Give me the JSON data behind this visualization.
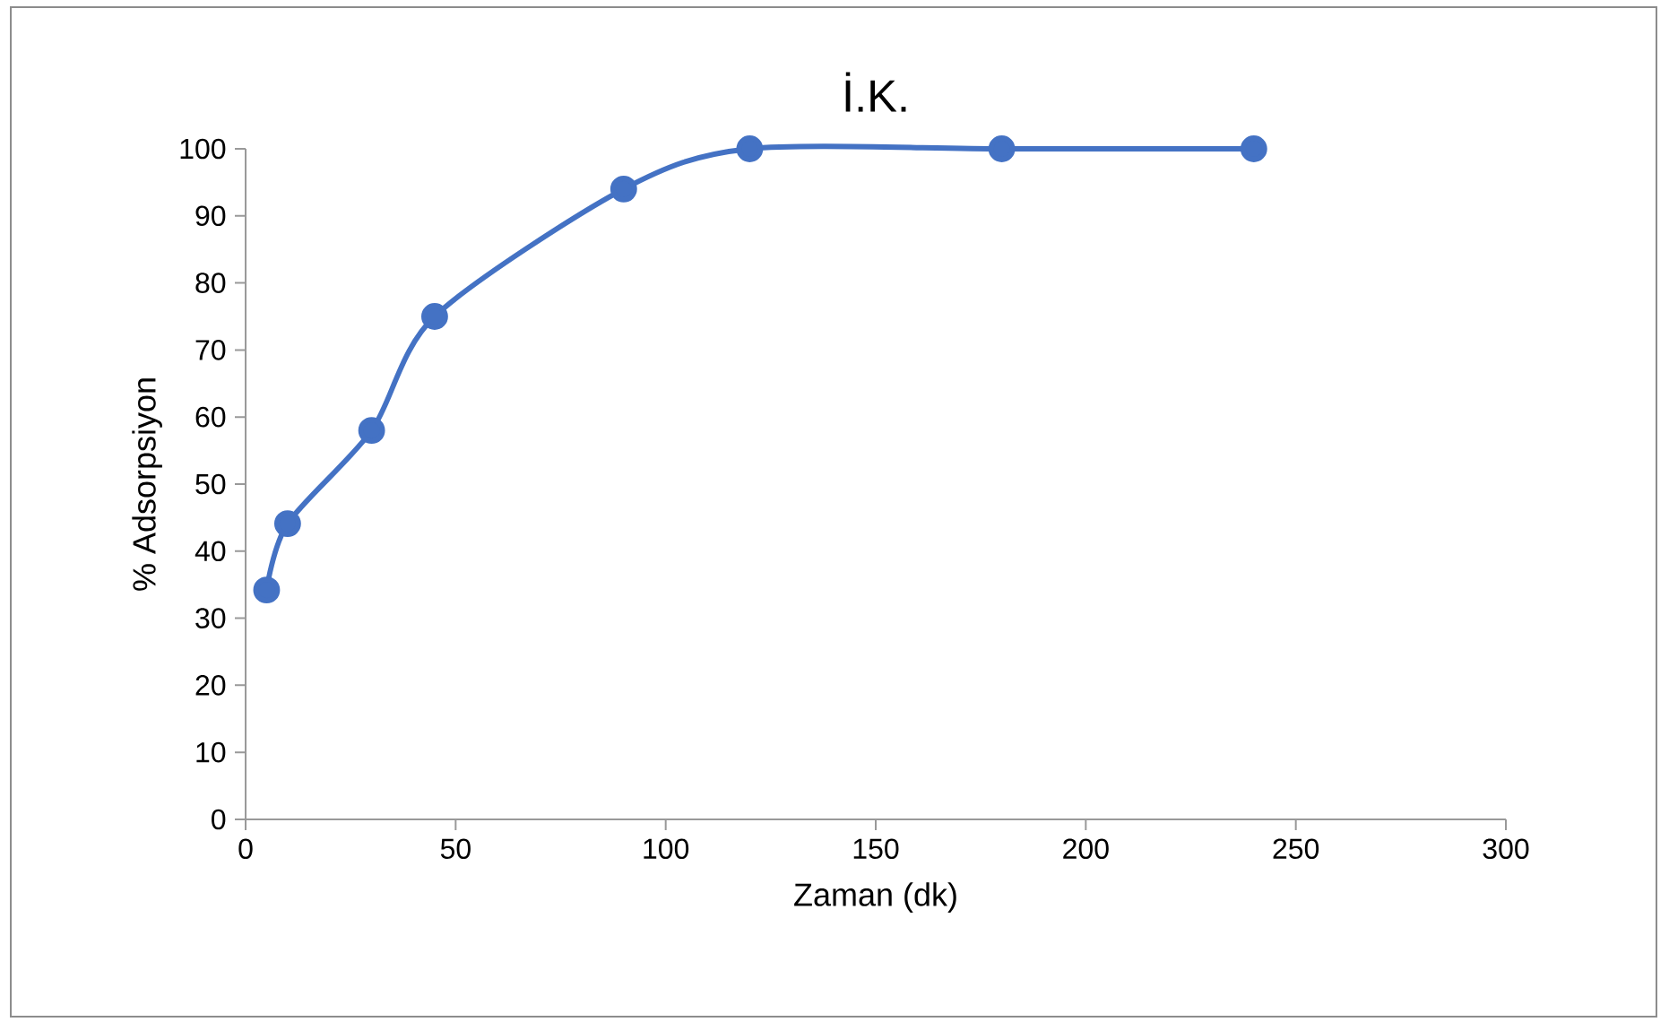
{
  "chart_data": {
    "type": "line",
    "title": "İ.K.",
    "xlabel": "Zaman (dk)",
    "ylabel": "% Adsorpsiyon",
    "x": [
      5,
      10,
      30,
      45,
      90,
      120,
      180,
      240
    ],
    "series": [
      {
        "color": "#4472c4",
        "values": [
          34.2,
          44.1,
          58.0,
          75.0,
          94.0,
          100,
          100,
          100
        ]
      }
    ],
    "xlim": [
      0,
      300
    ],
    "xticks": [
      0,
      50,
      100,
      150,
      200,
      250,
      300
    ],
    "ylim": [
      0,
      100
    ],
    "yticks": [
      0,
      10,
      20,
      30,
      40,
      50,
      60,
      70,
      80,
      90,
      100
    ],
    "grid": false,
    "marker": "circle",
    "line_style": "solid"
  }
}
